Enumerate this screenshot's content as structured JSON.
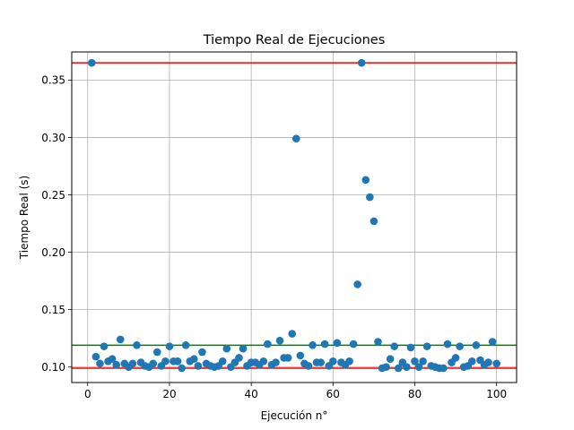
{
  "chart_data": {
    "type": "scatter",
    "title": "Tiempo Real de Ejecuciones",
    "xlabel": "Ejecución n°",
    "ylabel": "Tiempo Real (s)",
    "xlim": [
      -3.9,
      104.9
    ],
    "ylim": [
      0.0865,
      0.3745
    ],
    "xticks": [
      0,
      20,
      40,
      60,
      80,
      100
    ],
    "xtick_labels": [
      "0",
      "20",
      "40",
      "60",
      "80",
      "100"
    ],
    "yticks": [
      0.1,
      0.15,
      0.2,
      0.25,
      0.3,
      0.35
    ],
    "ytick_labels": [
      "0.10",
      "0.15",
      "0.20",
      "0.25",
      "0.30",
      "0.35"
    ],
    "grid": true,
    "marker_color": "#1f77b4",
    "series": [
      {
        "x": [
          1,
          2,
          3,
          4,
          5,
          6,
          7,
          8,
          9,
          10,
          11,
          12,
          13,
          14,
          15,
          16,
          17,
          18,
          19,
          20,
          21,
          22,
          23,
          24,
          25,
          26,
          27,
          28,
          29,
          30,
          31,
          32,
          33,
          34,
          35,
          36,
          37,
          38,
          39,
          40,
          41,
          42,
          43,
          44,
          45,
          46,
          47,
          48,
          49,
          50,
          51,
          52,
          53,
          54,
          55,
          56,
          57,
          58,
          59,
          60,
          61,
          62,
          63,
          64,
          65,
          66,
          67,
          68,
          69,
          70,
          71,
          72,
          73,
          74,
          75,
          76,
          77,
          78,
          79,
          80,
          81,
          82,
          83,
          84,
          85,
          86,
          87,
          88,
          89,
          90,
          91,
          92,
          93,
          94,
          95,
          96,
          97,
          98,
          99,
          100
        ],
        "y": [
          0.365,
          0.109,
          0.103,
          0.118,
          0.105,
          0.107,
          0.102,
          0.124,
          0.103,
          0.1,
          0.103,
          0.119,
          0.104,
          0.101,
          0.1,
          0.103,
          0.113,
          0.101,
          0.105,
          0.118,
          0.105,
          0.105,
          0.099,
          0.119,
          0.105,
          0.107,
          0.101,
          0.113,
          0.103,
          0.101,
          0.1,
          0.101,
          0.105,
          0.116,
          0.1,
          0.104,
          0.108,
          0.116,
          0.101,
          0.104,
          0.104,
          0.102,
          0.105,
          0.12,
          0.102,
          0.104,
          0.123,
          0.108,
          0.108,
          0.129,
          0.299,
          0.11,
          0.103,
          0.101,
          0.119,
          0.104,
          0.104,
          0.12,
          0.101,
          0.105,
          0.121,
          0.104,
          0.102,
          0.105,
          0.12,
          0.172,
          0.365,
          0.263,
          0.248,
          0.227,
          0.122,
          0.099,
          0.1,
          0.107,
          0.118,
          0.099,
          0.104,
          0.1,
          0.117,
          0.105,
          0.1,
          0.105,
          0.118,
          0.101,
          0.1,
          0.099,
          0.099,
          0.12,
          0.104,
          0.108,
          0.118,
          0.1,
          0.101,
          0.105,
          0.119,
          0.106,
          0.102,
          0.104,
          0.122,
          0.103
        ]
      }
    ],
    "hlines": [
      {
        "y": 0.365,
        "color": "#ff0000"
      },
      {
        "y": 0.119,
        "color": "#008000"
      },
      {
        "y": 0.099,
        "color": "#ff0000"
      }
    ]
  }
}
